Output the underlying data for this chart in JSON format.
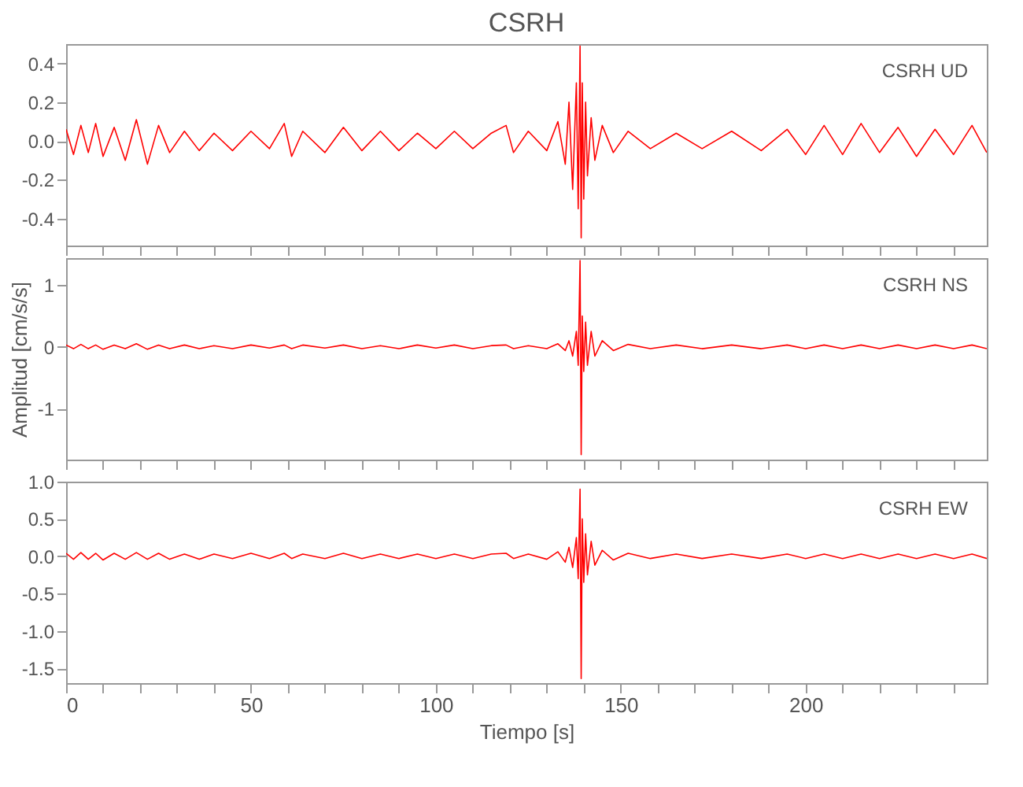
{
  "chart_data": [
    {
      "type": "line",
      "title": "CSRH",
      "annotations": [
        "CSRH UD"
      ],
      "tick_labels": "y",
      "grid": false,
      "x": [
        0,
        2,
        4,
        6,
        8,
        10,
        13,
        16,
        19,
        22,
        25,
        28,
        32,
        36,
        40,
        45,
        50,
        55,
        59,
        61,
        64,
        70,
        75,
        80,
        85,
        90,
        95,
        100,
        105,
        110,
        115,
        119,
        121,
        125,
        130,
        133,
        135,
        136,
        137,
        138,
        138.5,
        139,
        139.3,
        139.6,
        140,
        140.5,
        141,
        142,
        143,
        145,
        148,
        152,
        158,
        165,
        172,
        180,
        188,
        195,
        200,
        205,
        210,
        215,
        220,
        225,
        230,
        235,
        240,
        245,
        249
      ],
      "series": [
        {
          "color": "#ff0000",
          "values": [
            0.06,
            -0.07,
            0.08,
            -0.06,
            0.09,
            -0.08,
            0.07,
            -0.1,
            0.11,
            -0.12,
            0.08,
            -0.06,
            0.05,
            -0.05,
            0.04,
            -0.05,
            0.05,
            -0.04,
            0.09,
            -0.08,
            0.05,
            -0.06,
            0.07,
            -0.05,
            0.05,
            -0.05,
            0.04,
            -0.04,
            0.05,
            -0.04,
            0.04,
            0.08,
            -0.06,
            0.05,
            -0.05,
            0.1,
            -0.12,
            0.2,
            -0.25,
            0.3,
            -0.35,
            0.49,
            -0.5,
            0.3,
            -0.3,
            0.2,
            -0.18,
            0.12,
            -0.1,
            0.08,
            -0.06,
            0.05,
            -0.04,
            0.04,
            -0.04,
            0.05,
            -0.05,
            0.06,
            -0.07,
            0.08,
            -0.07,
            0.09,
            -0.06,
            0.07,
            -0.08,
            0.06,
            -0.07,
            0.08,
            -0.06
          ]
        }
      ],
      "xlim": [
        0,
        249
      ],
      "xticks": [
        0,
        {
          "value": 10,
          "label": null
        },
        {
          "value": 20,
          "label": null
        },
        {
          "value": 30,
          "label": null
        },
        {
          "value": 40,
          "label": null
        },
        50,
        {
          "value": 60,
          "label": null
        },
        {
          "value": 70,
          "label": null
        },
        {
          "value": 80,
          "label": null
        },
        {
          "value": 90,
          "label": null
        },
        100,
        {
          "value": 110,
          "label": null
        },
        {
          "value": 120,
          "label": null
        },
        {
          "value": 130,
          "label": null
        },
        {
          "value": 140,
          "label": null
        },
        150,
        {
          "value": 160,
          "label": null
        },
        {
          "value": 170,
          "label": null
        },
        {
          "value": 180,
          "label": null
        },
        {
          "value": 190,
          "label": null
        },
        200,
        {
          "value": 210,
          "label": null
        },
        {
          "value": 220,
          "label": null
        },
        {
          "value": 230,
          "label": null
        },
        {
          "value": 240,
          "label": null
        }
      ],
      "ylim": [
        -0.54,
        0.5
      ],
      "yticks": [
        {
          "value": -0.4,
          "label": "-0.4"
        },
        {
          "value": -0.2,
          "label": "-0.2"
        },
        {
          "value": 0,
          "label": "0.0"
        },
        {
          "value": 0.2,
          "label": "0.2"
        },
        {
          "value": 0.4,
          "label": "0.4"
        }
      ]
    },
    {
      "type": "line",
      "ylabel": "Amplitud [cm/s/s]",
      "annotations": [
        "CSRH NS"
      ],
      "tick_labels": "y",
      "grid": false,
      "x": [
        0,
        2,
        4,
        6,
        8,
        10,
        13,
        16,
        19,
        22,
        25,
        28,
        32,
        36,
        40,
        45,
        50,
        55,
        59,
        61,
        64,
        70,
        75,
        80,
        85,
        90,
        95,
        100,
        105,
        110,
        115,
        119,
        121,
        125,
        130,
        133,
        135,
        136,
        137,
        138,
        138.5,
        139,
        139.3,
        139.6,
        140,
        140.5,
        141,
        142,
        143,
        145,
        148,
        152,
        158,
        165,
        172,
        180,
        188,
        195,
        200,
        205,
        210,
        215,
        220,
        225,
        230,
        235,
        240,
        245,
        249
      ],
      "series": [
        {
          "color": "#ff0000",
          "values": [
            0.03,
            -0.03,
            0.04,
            -0.03,
            0.03,
            -0.04,
            0.03,
            -0.03,
            0.05,
            -0.04,
            0.03,
            -0.03,
            0.03,
            -0.03,
            0.02,
            -0.03,
            0.03,
            -0.02,
            0.03,
            -0.03,
            0.03,
            -0.02,
            0.03,
            -0.03,
            0.02,
            -0.03,
            0.03,
            -0.02,
            0.03,
            -0.03,
            0.02,
            0.03,
            -0.03,
            0.02,
            -0.03,
            0.05,
            -0.06,
            0.1,
            -0.15,
            0.25,
            -0.3,
            1.4,
            -1.75,
            0.5,
            -0.4,
            0.4,
            -0.3,
            0.25,
            -0.15,
            0.1,
            -0.06,
            0.04,
            -0.03,
            0.03,
            -0.03,
            0.03,
            -0.03,
            0.03,
            -0.03,
            0.03,
            -0.03,
            0.03,
            -0.03,
            0.03,
            -0.03,
            0.03,
            -0.03,
            0.03,
            -0.03
          ]
        }
      ],
      "xlim": [
        0,
        249
      ],
      "xticks": [
        0,
        {
          "value": 10,
          "label": null
        },
        {
          "value": 20,
          "label": null
        },
        {
          "value": 30,
          "label": null
        },
        {
          "value": 40,
          "label": null
        },
        50,
        {
          "value": 60,
          "label": null
        },
        {
          "value": 70,
          "label": null
        },
        {
          "value": 80,
          "label": null
        },
        {
          "value": 90,
          "label": null
        },
        100,
        {
          "value": 110,
          "label": null
        },
        {
          "value": 120,
          "label": null
        },
        {
          "value": 130,
          "label": null
        },
        {
          "value": 140,
          "label": null
        },
        150,
        {
          "value": 160,
          "label": null
        },
        {
          "value": 170,
          "label": null
        },
        {
          "value": 180,
          "label": null
        },
        {
          "value": 190,
          "label": null
        },
        200,
        {
          "value": 210,
          "label": null
        },
        {
          "value": 220,
          "label": null
        },
        {
          "value": 230,
          "label": null
        },
        {
          "value": 240,
          "label": null
        }
      ],
      "ylim": [
        -1.83,
        1.44
      ],
      "yticks": [
        -1,
        0,
        1
      ]
    },
    {
      "type": "line",
      "xlabel": "Tiempo [s]",
      "annotations": [
        "CSRH EW"
      ],
      "grid": false,
      "x": [
        0,
        2,
        4,
        6,
        8,
        10,
        13,
        16,
        19,
        22,
        25,
        28,
        32,
        36,
        40,
        45,
        50,
        55,
        59,
        61,
        64,
        70,
        75,
        80,
        85,
        90,
        95,
        100,
        105,
        110,
        115,
        119,
        121,
        125,
        130,
        133,
        135,
        136,
        137,
        138,
        138.5,
        139,
        139.3,
        139.6,
        140,
        140.5,
        141,
        142,
        143,
        145,
        148,
        152,
        158,
        165,
        172,
        180,
        188,
        195,
        200,
        205,
        210,
        215,
        220,
        225,
        230,
        235,
        240,
        245,
        249
      ],
      "series": [
        {
          "color": "#ff0000",
          "values": [
            0.04,
            -0.04,
            0.05,
            -0.04,
            0.04,
            -0.05,
            0.04,
            -0.04,
            0.05,
            -0.04,
            0.04,
            -0.04,
            0.03,
            -0.04,
            0.03,
            -0.03,
            0.04,
            -0.03,
            0.04,
            -0.03,
            0.03,
            -0.03,
            0.04,
            -0.03,
            0.03,
            -0.03,
            0.03,
            -0.03,
            0.03,
            -0.03,
            0.03,
            0.04,
            -0.03,
            0.03,
            -0.04,
            0.06,
            -0.08,
            0.12,
            -0.15,
            0.25,
            -0.3,
            0.9,
            -1.64,
            0.5,
            -0.35,
            0.3,
            -0.25,
            0.2,
            -0.12,
            0.08,
            -0.05,
            0.04,
            -0.03,
            0.03,
            -0.03,
            0.03,
            -0.03,
            0.03,
            -0.03,
            0.03,
            -0.03,
            0.03,
            -0.03,
            0.03,
            -0.03,
            0.03,
            -0.03,
            0.03,
            -0.03
          ]
        }
      ],
      "xlim": [
        0,
        249
      ],
      "xticks": [
        0,
        {
          "value": 10,
          "label": null
        },
        {
          "value": 20,
          "label": null
        },
        {
          "value": 30,
          "label": null
        },
        {
          "value": 40,
          "label": null
        },
        50,
        {
          "value": 60,
          "label": null
        },
        {
          "value": 70,
          "label": null
        },
        {
          "value": 80,
          "label": null
        },
        {
          "value": 90,
          "label": null
        },
        100,
        {
          "value": 110,
          "label": null
        },
        {
          "value": 120,
          "label": null
        },
        {
          "value": 130,
          "label": null
        },
        {
          "value": 140,
          "label": null
        },
        150,
        {
          "value": 160,
          "label": null
        },
        {
          "value": 170,
          "label": null
        },
        {
          "value": 180,
          "label": null
        },
        {
          "value": 190,
          "label": null
        },
        200,
        {
          "value": 210,
          "label": null
        },
        {
          "value": 220,
          "label": null
        },
        {
          "value": 230,
          "label": null
        },
        {
          "value": 240,
          "label": null
        }
      ],
      "ylim": [
        -1.7,
        1.0
      ],
      "yticks": [
        {
          "value": -1.5,
          "label": "-1.5"
        },
        {
          "value": -1.0,
          "label": "-1.0"
        },
        {
          "value": -0.5,
          "label": "-0.5"
        },
        {
          "value": 0,
          "label": "0.0"
        },
        {
          "value": 0.5,
          "label": "0.5"
        },
        {
          "value": 1.0,
          "label": "1.0"
        }
      ]
    }
  ]
}
